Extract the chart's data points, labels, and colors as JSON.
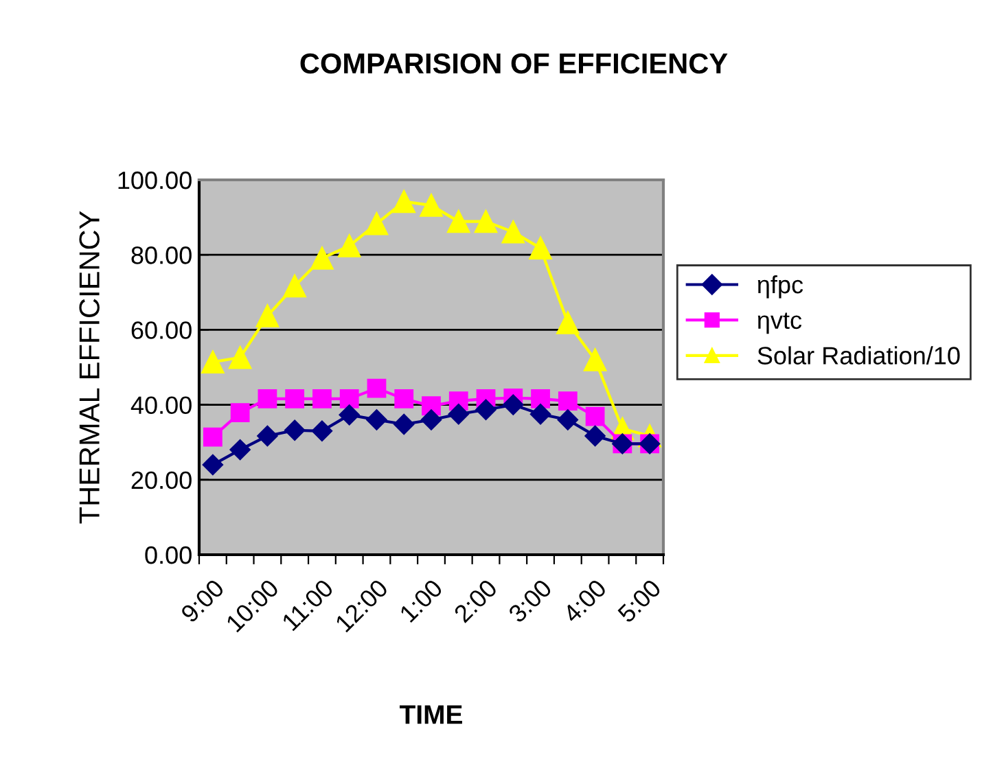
{
  "chart_data": {
    "type": "line",
    "title": "COMPARISION OF EFFICIENCY",
    "xlabel": "TIME",
    "ylabel": "THERMAL EFFICIENCY",
    "categories": [
      "9:00",
      null,
      "10:00",
      null,
      "11:00",
      null,
      "12:00",
      null,
      "1:00",
      null,
      "2:00",
      null,
      "3:00",
      null,
      "4:00",
      null,
      "5:00"
    ],
    "series": [
      {
        "name": "ηfpc",
        "color": "#000080",
        "marker": "diamond",
        "values": [
          24,
          28,
          31.7,
          33.2,
          33,
          37.3,
          36,
          34.8,
          36,
          37.5,
          38.7,
          40,
          37.5,
          36,
          31.7,
          29.6,
          29.6
        ]
      },
      {
        "name": "ηvtc",
        "color": "#ff00ff",
        "marker": "square",
        "values": [
          31.4,
          37.9,
          41.6,
          41.6,
          41.6,
          41.6,
          44.4,
          41.6,
          39.7,
          41,
          41.6,
          41.8,
          41.6,
          41,
          36.9,
          29.6,
          29.6
        ]
      },
      {
        "name": "Solar Radiation/10",
        "color": "#ffff00",
        "marker": "triangle",
        "values": [
          51.4,
          52.6,
          63.7,
          71.7,
          79.1,
          82.4,
          88.3,
          94.2,
          93.2,
          88.9,
          88.9,
          86.1,
          81.8,
          61.9,
          52,
          33.6,
          31.7
        ]
      }
    ],
    "ylim": [
      0,
      100
    ],
    "yticks": [
      {
        "value": 0,
        "label": "0.00"
      },
      {
        "value": 20,
        "label": "20.00"
      },
      {
        "value": 40,
        "label": "40.00"
      },
      {
        "value": 60,
        "label": "60.00"
      },
      {
        "value": 80,
        "label": "80.00"
      },
      {
        "value": 100,
        "label": "100.00"
      }
    ],
    "grid": "y",
    "legend": "right",
    "line_style": "solid"
  }
}
